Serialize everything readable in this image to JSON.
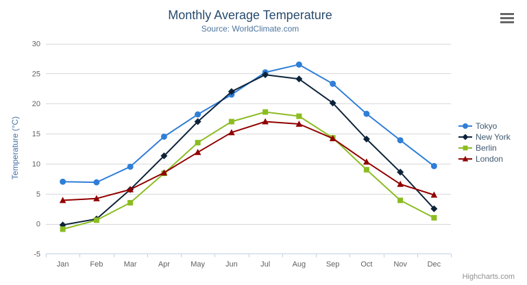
{
  "header": {
    "title": "Monthly Average Temperature",
    "subtitle": "Source: WorldClimate.com"
  },
  "credits": {
    "text": "Highcharts.com"
  },
  "icons": {
    "context_menu": "hamburger-icon"
  },
  "colors": {
    "title": "#274b6d",
    "subtitle": "#4d759e",
    "axis_label": "#606060",
    "yaxis_title": "#4572a7",
    "gridline": "#d8d8d8",
    "axis_line": "#c0d0e0",
    "legend_text": "#3e576f",
    "credits": "#909090",
    "menu_icon": "#666666"
  },
  "chart_data": {
    "type": "line",
    "title": "Monthly Average Temperature",
    "subtitle": "Source: WorldClimate.com",
    "categories": [
      "Jan",
      "Feb",
      "Mar",
      "Apr",
      "May",
      "Jun",
      "Jul",
      "Aug",
      "Sep",
      "Oct",
      "Nov",
      "Dec"
    ],
    "xlabel": "",
    "ylabel": "Temperature (°C)",
    "ylim": [
      -5,
      30
    ],
    "ytick_interval": 5,
    "grid": "horizontal",
    "legend_position": "right-middle",
    "series": [
      {
        "name": "Tokyo",
        "color": "#2f7ed8",
        "marker": "circle",
        "values": [
          7.0,
          6.9,
          9.5,
          14.5,
          18.2,
          21.5,
          25.2,
          26.5,
          23.3,
          18.3,
          13.9,
          9.6
        ]
      },
      {
        "name": "New York",
        "color": "#0d233a",
        "marker": "diamond",
        "values": [
          -0.2,
          0.8,
          5.7,
          11.3,
          17.0,
          22.0,
          24.8,
          24.1,
          20.1,
          14.1,
          8.6,
          2.5
        ]
      },
      {
        "name": "Berlin",
        "color": "#8bbc21",
        "marker": "square",
        "values": [
          -0.9,
          0.6,
          3.5,
          8.4,
          13.5,
          17.0,
          18.6,
          17.9,
          14.3,
          9.0,
          3.9,
          1.0
        ]
      },
      {
        "name": "London",
        "color": "#910000",
        "marker": "triangle",
        "values": [
          3.9,
          4.2,
          5.7,
          8.5,
          11.9,
          15.2,
          17.0,
          16.6,
          14.2,
          10.3,
          6.6,
          4.8
        ]
      }
    ]
  }
}
